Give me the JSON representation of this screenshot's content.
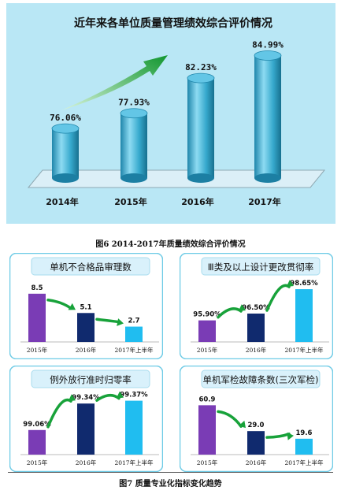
{
  "figure6": {
    "caption": "图6 2014-2017年质量绩效综合评价情况",
    "chart_data": {
      "type": "bar",
      "title": "近年来各单位质量管理绩效综合评价情况",
      "categories": [
        "2014年",
        "2015年",
        "2016年",
        "2017年"
      ],
      "values": [
        76.06,
        77.93,
        82.23,
        84.99
      ],
      "value_labels": [
        "76.06%",
        "77.93%",
        "82.23%",
        "84.99%"
      ],
      "unit": "%",
      "ylim": [
        70,
        86
      ],
      "grid": false,
      "legend": "none",
      "colors": {
        "background": "#b9e7f5",
        "bar": "#2f9fc4",
        "bar_light": "#8ddbf2",
        "bar_dark": "#17708f",
        "arrow": "#18a23a"
      }
    }
  },
  "figure7": {
    "caption": "图7 质量专业化指标变化趋势",
    "chart_data": [
      {
        "type": "bar",
        "title": "单机不合格品审理数",
        "categories": [
          "2015年",
          "2016年",
          "2017年上半年"
        ],
        "values": [
          8.5,
          5.1,
          2.7
        ],
        "value_labels": [
          "8.5",
          "5.1",
          "2.7"
        ],
        "ylim": [
          0,
          10
        ],
        "trend": "down"
      },
      {
        "type": "bar",
        "title": "Ⅲ类及以上设计更改贯彻率",
        "categories": [
          "2015年",
          "2016年",
          "2017年上半年"
        ],
        "values": [
          95.9,
          96.5,
          98.65
        ],
        "value_labels": [
          "95.90%",
          "96.50%",
          "98.65%"
        ],
        "unit": "%",
        "ylim": [
          94,
          99
        ],
        "trend": "up"
      },
      {
        "type": "bar",
        "title": "例外放行准时归零率",
        "categories": [
          "2015年",
          "2016年",
          "2017年上半年"
        ],
        "values": [
          99.06,
          99.34,
          99.37
        ],
        "value_labels": [
          "99.06%",
          "99.34%",
          "99.37%"
        ],
        "unit": "%",
        "ylim": [
          98.8,
          99.4
        ],
        "trend": "up"
      },
      {
        "type": "bar",
        "title": "单机军检故障条数(三次军检)",
        "categories": [
          "2015年",
          "2016年",
          "2017年上半年"
        ],
        "values": [
          60.9,
          29.0,
          19.6
        ],
        "value_labels": [
          "60.9",
          "29.0",
          "19.6"
        ],
        "ylim": [
          0,
          70
        ],
        "trend": "down"
      }
    ],
    "colors": {
      "bar_2015": "#7a3cb5",
      "bar_2016": "#102a6e",
      "bar_2017": "#20bdf0",
      "arrow": "#18a23a",
      "border": "#6ecbe6",
      "title_box": "#d9f1fb"
    }
  }
}
